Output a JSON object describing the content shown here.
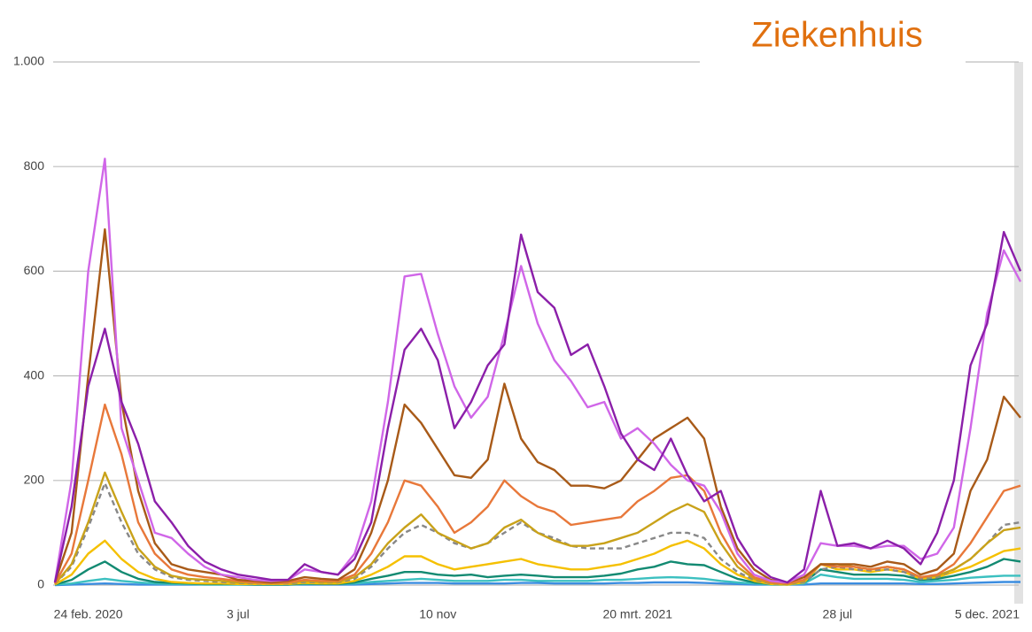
{
  "chart_data": {
    "type": "line",
    "title": "Ziekenhuis",
    "categories": [
      null,
      null,
      "24 feb. 2020",
      null,
      null,
      null,
      null,
      null,
      null,
      null,
      null,
      "3 jul",
      null,
      null,
      null,
      null,
      null,
      null,
      null,
      null,
      null,
      null,
      null,
      "10 nov",
      null,
      null,
      null,
      null,
      null,
      null,
      null,
      null,
      null,
      null,
      null,
      "20 mrt. 2021",
      null,
      null,
      null,
      null,
      null,
      null,
      null,
      null,
      null,
      null,
      null,
      "28 jul",
      null,
      null,
      null,
      null,
      null,
      null,
      null,
      null,
      "5 dec. 2021",
      null,
      null
    ],
    "ylim": [
      0,
      1000
    ],
    "yticks": [
      0,
      200,
      400,
      600,
      800,
      {
        "value": 1000,
        "label": "1.000"
      }
    ],
    "grid": true,
    "series": [
      {
        "color": "#3b8de0",
        "values": [
          0,
          1,
          2,
          3,
          2,
          1,
          1,
          1,
          1,
          1,
          1,
          1,
          1,
          1,
          1,
          1,
          1,
          1,
          1,
          2,
          3,
          4,
          4,
          4,
          3,
          3,
          3,
          3,
          4,
          4,
          3,
          3,
          3,
          3,
          4,
          4,
          5,
          5,
          5,
          4,
          3,
          2,
          1,
          1,
          1,
          1,
          3,
          3,
          3,
          3,
          3,
          3,
          2,
          2,
          3,
          4,
          5,
          6,
          6
        ]
      },
      {
        "color": "#3cc0c0",
        "values": [
          1,
          3,
          8,
          12,
          8,
          5,
          3,
          2,
          2,
          1,
          1,
          1,
          1,
          1,
          1,
          2,
          2,
          2,
          3,
          6,
          8,
          10,
          12,
          10,
          8,
          8,
          8,
          10,
          10,
          8,
          8,
          8,
          8,
          10,
          10,
          12,
          14,
          15,
          14,
          12,
          8,
          5,
          3,
          1,
          1,
          3,
          20,
          15,
          12,
          12,
          12,
          10,
          6,
          8,
          10,
          14,
          16,
          18,
          18
        ]
      },
      {
        "color": "#138a72",
        "values": [
          1,
          10,
          30,
          45,
          25,
          12,
          6,
          4,
          3,
          2,
          2,
          2,
          1,
          1,
          1,
          3,
          2,
          2,
          5,
          12,
          18,
          25,
          25,
          20,
          18,
          20,
          15,
          18,
          20,
          18,
          15,
          15,
          15,
          18,
          22,
          30,
          35,
          45,
          40,
          38,
          25,
          12,
          5,
          2,
          1,
          5,
          30,
          25,
          20,
          20,
          20,
          18,
          10,
          12,
          18,
          25,
          35,
          50,
          45
        ]
      },
      {
        "color": "#f5c000",
        "values": [
          1,
          20,
          60,
          85,
          50,
          25,
          12,
          6,
          4,
          3,
          3,
          2,
          2,
          2,
          2,
          4,
          3,
          3,
          8,
          20,
          35,
          55,
          55,
          40,
          30,
          35,
          40,
          45,
          50,
          40,
          35,
          30,
          30,
          35,
          40,
          50,
          60,
          75,
          85,
          70,
          40,
          20,
          8,
          2,
          1,
          5,
          40,
          30,
          30,
          25,
          30,
          25,
          12,
          15,
          25,
          35,
          50,
          65,
          70
        ]
      },
      {
        "color": "#888888",
        "dashed": true,
        "values": [
          2,
          35,
          110,
          195,
          120,
          60,
          30,
          15,
          10,
          8,
          6,
          4,
          3,
          3,
          3,
          6,
          5,
          5,
          12,
          35,
          70,
          100,
          115,
          100,
          80,
          70,
          80,
          100,
          120,
          100,
          90,
          75,
          70,
          70,
          70,
          80,
          90,
          100,
          100,
          90,
          50,
          25,
          10,
          3,
          2,
          6,
          30,
          35,
          30,
          28,
          30,
          25,
          12,
          15,
          30,
          50,
          80,
          115,
          120
        ]
      },
      {
        "color": "#c9a21a",
        "values": [
          2,
          40,
          120,
          215,
          140,
          70,
          35,
          18,
          12,
          10,
          8,
          5,
          4,
          3,
          4,
          8,
          6,
          6,
          15,
          40,
          80,
          110,
          135,
          100,
          85,
          70,
          80,
          110,
          125,
          100,
          85,
          75,
          75,
          80,
          90,
          100,
          120,
          140,
          155,
          140,
          80,
          35,
          12,
          4,
          2,
          8,
          40,
          40,
          35,
          30,
          35,
          30,
          15,
          18,
          30,
          50,
          80,
          105,
          110
        ]
      },
      {
        "color": "#e8783a",
        "values": [
          3,
          60,
          200,
          345,
          250,
          120,
          60,
          30,
          20,
          15,
          12,
          8,
          5,
          4,
          5,
          10,
          8,
          8,
          20,
          60,
          120,
          200,
          190,
          150,
          100,
          120,
          150,
          200,
          170,
          150,
          140,
          115,
          120,
          125,
          130,
          160,
          180,
          205,
          210,
          180,
          100,
          45,
          15,
          5,
          3,
          10,
          40,
          35,
          35,
          30,
          35,
          30,
          15,
          20,
          40,
          80,
          130,
          180,
          190
        ]
      },
      {
        "color": "#a85a18",
        "values": [
          5,
          100,
          400,
          680,
          350,
          180,
          80,
          40,
          30,
          25,
          20,
          10,
          8,
          5,
          8,
          15,
          12,
          10,
          30,
          100,
          200,
          345,
          310,
          260,
          210,
          205,
          240,
          385,
          280,
          235,
          220,
          190,
          190,
          185,
          200,
          240,
          280,
          300,
          320,
          280,
          150,
          70,
          30,
          10,
          5,
          15,
          40,
          40,
          40,
          35,
          45,
          40,
          20,
          30,
          60,
          180,
          240,
          360,
          320
        ]
      },
      {
        "color": "#d066e8",
        "values": [
          5,
          200,
          600,
          815,
          300,
          200,
          100,
          90,
          60,
          35,
          20,
          15,
          10,
          8,
          10,
          30,
          25,
          20,
          60,
          160,
          350,
          590,
          595,
          480,
          380,
          320,
          360,
          480,
          610,
          500,
          430,
          390,
          340,
          350,
          280,
          300,
          270,
          230,
          200,
          190,
          140,
          60,
          20,
          8,
          5,
          20,
          80,
          75,
          75,
          70,
          75,
          75,
          50,
          60,
          110,
          300,
          520,
          640,
          580
        ]
      },
      {
        "color": "#8b1fa9",
        "values": [
          5,
          150,
          380,
          490,
          350,
          270,
          160,
          120,
          75,
          45,
          30,
          20,
          15,
          10,
          10,
          40,
          25,
          20,
          50,
          120,
          300,
          450,
          490,
          430,
          300,
          350,
          420,
          460,
          670,
          560,
          530,
          440,
          460,
          380,
          290,
          240,
          220,
          280,
          210,
          160,
          180,
          90,
          40,
          15,
          5,
          30,
          180,
          75,
          80,
          70,
          85,
          70,
          40,
          100,
          200,
          420,
          500,
          675,
          600
        ]
      }
    ]
  }
}
